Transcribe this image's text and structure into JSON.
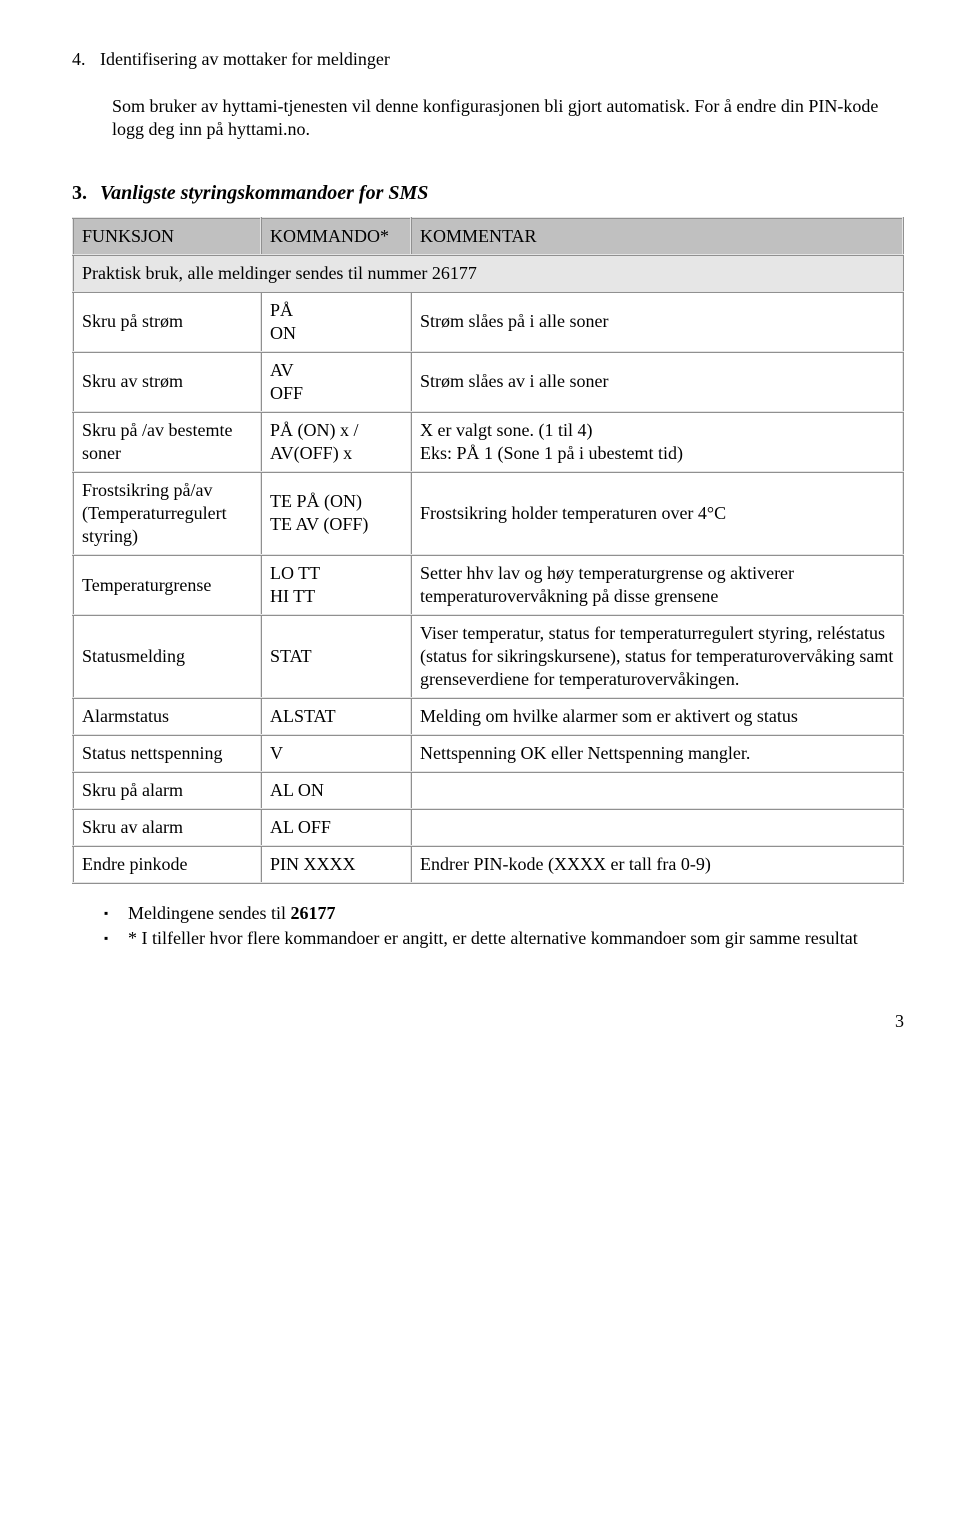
{
  "section4": {
    "number": "4.",
    "title": "Identifisering av mottaker for meldinger",
    "paragraph1": "Som bruker av hyttami-tjenesten vil denne konfigurasjonen bli gjort automatisk. For å endre din PIN-kode logg deg inn på hyttami.no."
  },
  "section3": {
    "number": "3.",
    "title": "Vanligste styringskommandoer for SMS"
  },
  "table": {
    "headers": [
      "FUNKSJON",
      "KOMMANDO*",
      "KOMMENTAR"
    ],
    "subheader": "Praktisk bruk, alle meldinger sendes til nummer 26177",
    "rows": [
      {
        "funksjon": "Skru på strøm",
        "kommando": "PÅ\nON",
        "kommentar": "Strøm slåes på i alle soner"
      },
      {
        "funksjon": "Skru av strøm",
        "kommando": "AV\nOFF",
        "kommentar": "Strøm slåes av i alle soner"
      },
      {
        "funksjon": "Skru på /av bestemte soner",
        "kommando": "PÅ (ON) x /\nAV(OFF) x",
        "kommentar": "X er valgt sone. (1 til 4)\nEks: PÅ 1  (Sone 1 på i ubestemt tid)"
      },
      {
        "funksjon": "Frostsikring på/av (Temperaturregulert styring)",
        "kommando": "TE PÅ (ON)\nTE AV (OFF)",
        "kommentar": "Frostsikring holder temperaturen over 4°C"
      },
      {
        "funksjon": "Temperaturgrense",
        "kommando": "LO TT\nHI TT",
        "kommentar": "Setter hhv lav og høy temperaturgrense og aktiverer temperaturovervåkning på disse grensene"
      },
      {
        "funksjon": "Statusmelding",
        "kommando": "STAT",
        "kommentar": "Viser temperatur, status for temperaturregulert styring, reléstatus (status for sikringskursene), status for temperaturovervåking samt grenseverdiene for temperaturovervåkingen."
      },
      {
        "funksjon": "Alarmstatus",
        "kommando": "ALSTAT",
        "kommentar": "Melding om hvilke alarmer som er aktivert og status"
      },
      {
        "funksjon": "Status nettspenning",
        "kommando": " V",
        "kommentar": "Nettspenning OK eller Nettspenning mangler."
      },
      {
        "funksjon": "Skru på alarm",
        "kommando": "AL ON",
        "kommentar": ""
      },
      {
        "funksjon": "Skru av alarm",
        "kommando": "AL OFF",
        "kommentar": ""
      },
      {
        "funksjon": "Endre pinkode",
        "kommando": "PIN XXXX",
        "kommentar": "Endrer PIN-kode (XXXX er tall fra 0-9)"
      }
    ]
  },
  "bullets": {
    "line1_pre": "Meldingene sendes til ",
    "line1_bold": "26177",
    "line2": "* I tilfeller hvor flere kommandoer er angitt, er dette alternative kommandoer som gir samme resultat"
  },
  "page_number": "3"
}
